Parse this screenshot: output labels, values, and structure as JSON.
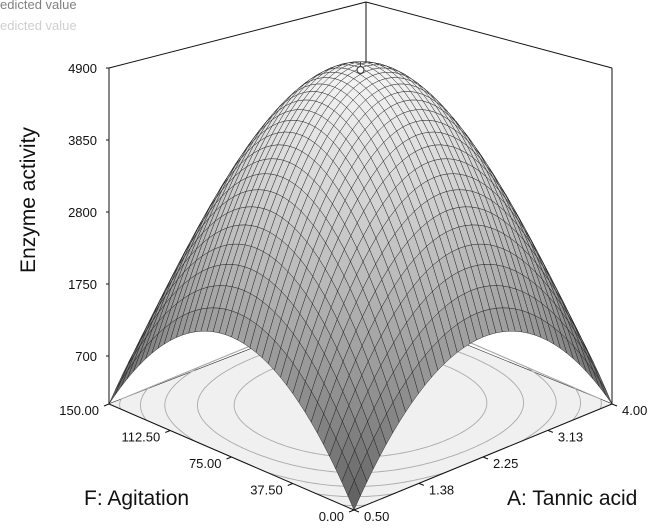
{
  "chart_data": {
    "type": "surface",
    "zlabel": "Enzyme activity",
    "xlabel": "A: Tannic acid",
    "ylabel": "F: Agitation",
    "z_ticks": [
      "700",
      "1750",
      "2800",
      "3850",
      "4900"
    ],
    "x_ticks": [
      "0.50",
      "1.38",
      "2.25",
      "3.13",
      "4.00"
    ],
    "y_ticks": [
      "0.00",
      "37.50",
      "75.00",
      "112.50",
      "150.00"
    ],
    "xlim": [
      0.5,
      4.0
    ],
    "ylim": [
      0.0,
      150.0
    ],
    "zlim": [
      0,
      4900
    ],
    "legend": [
      "edicted value",
      "edicted value"
    ],
    "grid": false,
    "peak": {
      "x": 2.25,
      "y": 75.0,
      "z": 4900
    },
    "colors": {
      "surface_low": "#5a5a5a",
      "surface_high": "#f2f2f2",
      "mesh": "#1e1e1e",
      "floor": "#f0f0f0",
      "contour": "#aaaaaa",
      "legend_dark": "#808080",
      "legend_light": "#cfcfcf"
    }
  }
}
